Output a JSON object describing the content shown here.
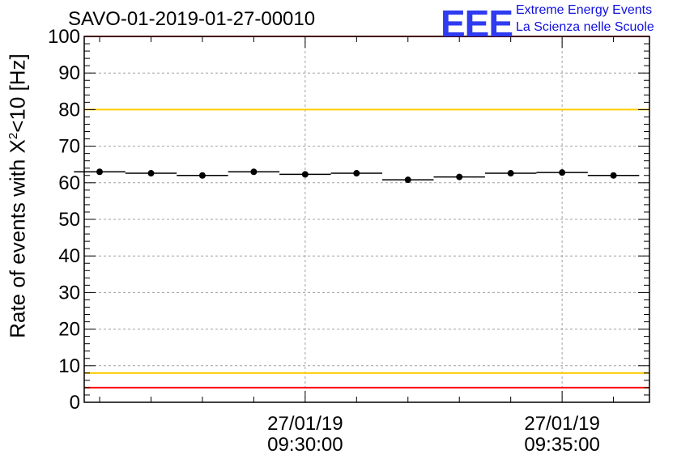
{
  "header": {
    "title": "SAVO-01-2019-01-27-00010",
    "logo_text": "EEE",
    "brand_line1": "Extreme Energy Events",
    "brand_line2": "La Scienza nelle Scuole"
  },
  "chart_data": {
    "type": "scatter",
    "title": "SAVO-01-2019-01-27-00010",
    "ylabel_prefix": "Rate of events with X",
    "ylabel_sup": "2",
    "ylabel_suffix": "<10 [Hz]",
    "xlabel": "",
    "ylim": [
      0,
      100
    ],
    "yticks": [
      0,
      10,
      20,
      30,
      40,
      50,
      60,
      70,
      80,
      90,
      100
    ],
    "xlim_minutes": [
      -4.3,
      6.7
    ],
    "x_tick_labels": [
      {
        "minute": 0,
        "date": "27/01/19",
        "time": "09:30:00"
      },
      {
        "minute": 5,
        "date": "27/01/19",
        "time": "09:35:00"
      }
    ],
    "grid": true,
    "series": [
      {
        "name": "rate",
        "bin_width_minutes": 1,
        "x_minutes": [
          -4.0,
          -3.0,
          -2.0,
          -1.0,
          0.0,
          1.0,
          2.0,
          3.0,
          4.0,
          5.0,
          6.0
        ],
        "values": [
          63.0,
          62.6,
          62.0,
          63.0,
          62.3,
          62.6,
          60.8,
          61.6,
          62.6,
          62.8,
          62.0
        ],
        "errors": [
          0.7,
          0.7,
          0.7,
          0.7,
          0.7,
          0.7,
          0.7,
          0.7,
          0.7,
          0.7,
          0.7
        ],
        "color": "#000000"
      }
    ],
    "reference_lines": [
      {
        "name": "upper-red",
        "value": 100,
        "color": "#ff0000"
      },
      {
        "name": "upper-yellow",
        "value": 80,
        "color": "#ffcc00"
      },
      {
        "name": "lower-yellow",
        "value": 8,
        "color": "#ffcc00"
      },
      {
        "name": "lower-red",
        "value": 4,
        "color": "#ff0000"
      }
    ]
  }
}
